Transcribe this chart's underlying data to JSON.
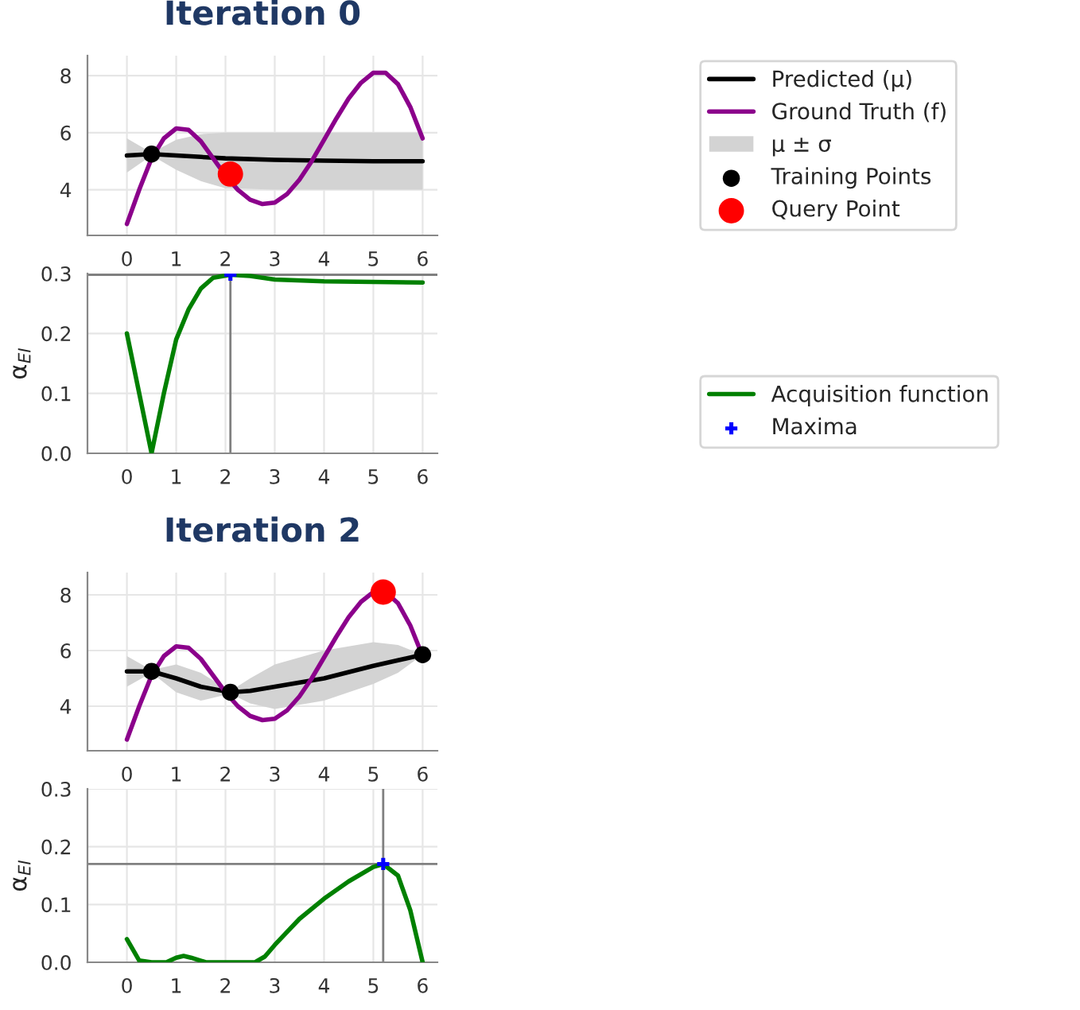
{
  "chart_data": [
    {
      "type": "line",
      "title": "Iteration 0",
      "xlim": [
        -0.8,
        6.3
      ],
      "ylim": [
        2.4,
        8.7
      ],
      "xticks": [
        0,
        1,
        2,
        3,
        4,
        5,
        6
      ],
      "yticks": [
        4,
        6,
        8
      ],
      "grid": true,
      "legend": "right",
      "annotations": [
        "μ ± σ"
      ],
      "series": [
        {
          "name": "Predicted (μ)",
          "type": "line",
          "color": "#000000",
          "x": [
            0,
            0.5,
            1,
            1.5,
            2,
            3,
            4,
            5,
            6
          ],
          "values": [
            5.2,
            5.25,
            5.2,
            5.15,
            5.1,
            5.05,
            5.02,
            5.0,
            5.0
          ],
          "lower": [
            4.6,
            5.2,
            4.7,
            4.3,
            4.05,
            4.0,
            4.0,
            4.0,
            4.0
          ],
          "upper": [
            5.8,
            5.3,
            5.75,
            5.95,
            6.0,
            6.0,
            6.0,
            6.0,
            6.0
          ]
        },
        {
          "name": "Ground Truth (f)",
          "type": "line",
          "color": "#8b008b",
          "x": [
            0,
            0.25,
            0.5,
            0.75,
            1.0,
            1.25,
            1.5,
            1.75,
            2.0,
            2.25,
            2.5,
            2.75,
            3.0,
            3.25,
            3.5,
            3.75,
            4.0,
            4.25,
            4.5,
            4.75,
            5.0,
            5.25,
            5.5,
            5.75,
            6.0
          ],
          "values": [
            2.8,
            4.0,
            5.1,
            5.8,
            6.15,
            6.1,
            5.7,
            5.1,
            4.5,
            4.0,
            3.65,
            3.5,
            3.55,
            3.85,
            4.35,
            5.0,
            5.75,
            6.5,
            7.2,
            7.75,
            8.1,
            8.1,
            7.7,
            6.9,
            5.8
          ]
        },
        {
          "name": "Training Points",
          "type": "scatter",
          "marker": "circle",
          "color": "#000000",
          "x": [
            0.5
          ],
          "values": [
            5.25
          ]
        },
        {
          "name": "Query Point",
          "type": "scatter",
          "marker": "circle",
          "color": "#ff0000",
          "x": [
            2.1
          ],
          "values": [
            4.55
          ]
        }
      ]
    },
    {
      "type": "line",
      "ylabel": "α$_{EI}$",
      "xlim": [
        -0.8,
        6.3
      ],
      "ylim": [
        0,
        0.3
      ],
      "xticks": [
        0,
        1,
        2,
        3,
        4,
        5,
        6
      ],
      "yticks": [
        {
          "value": 0,
          "label": "0.0"
        },
        0.1,
        0.2,
        0.3
      ],
      "grid": true,
      "legend": "bottom right",
      "ref_lines": [
        {
          "axis": "x",
          "value": 2.1,
          "color": "#808080"
        },
        {
          "axis": "y",
          "value": 0.298,
          "color": "#808080"
        }
      ],
      "series": [
        {
          "name": "Acquisition function",
          "type": "line",
          "color": "#008000",
          "x": [
            0,
            0.25,
            0.5,
            0.75,
            1,
            1.25,
            1.5,
            1.75,
            2.1,
            2.5,
            3,
            4,
            5,
            6
          ],
          "values": [
            0.2,
            0.1,
            0.0,
            0.1,
            0.19,
            0.24,
            0.275,
            0.293,
            0.298,
            0.296,
            0.29,
            0.287,
            0.286,
            0.285
          ]
        },
        {
          "name": "Maxima",
          "type": "scatter",
          "marker": "cross",
          "color": "#0000ff",
          "x": [
            2.1
          ],
          "values": [
            0.298
          ]
        }
      ]
    },
    {
      "type": "line",
      "title": "Iteration 2",
      "xlim": [
        -0.8,
        6.3
      ],
      "ylim": [
        2.4,
        8.8
      ],
      "xticks": [
        0,
        1,
        2,
        3,
        4,
        5,
        6
      ],
      "yticks": [
        4,
        6,
        8
      ],
      "grid": true,
      "series": [
        {
          "type": "line",
          "color": "#000000",
          "x": [
            0,
            0.5,
            1,
            1.5,
            2.1,
            2.5,
            3,
            4,
            5,
            5.5,
            6
          ],
          "values": [
            5.25,
            5.25,
            5.0,
            4.7,
            4.5,
            4.55,
            4.7,
            5.0,
            5.45,
            5.65,
            5.85
          ],
          "lower": [
            4.7,
            5.2,
            4.5,
            4.2,
            4.45,
            4.1,
            3.9,
            4.2,
            4.8,
            5.2,
            5.85
          ],
          "upper": [
            5.8,
            5.3,
            5.5,
            5.2,
            4.55,
            5.0,
            5.5,
            6.0,
            6.3,
            6.2,
            5.85
          ]
        },
        {
          "type": "line",
          "color": "#8b008b",
          "x": [
            0,
            0.25,
            0.5,
            0.75,
            1.0,
            1.25,
            1.5,
            1.75,
            2.0,
            2.25,
            2.5,
            2.75,
            3.0,
            3.25,
            3.5,
            3.75,
            4.0,
            4.25,
            4.5,
            4.75,
            5.0,
            5.25,
            5.5,
            5.75,
            6.0
          ],
          "values": [
            2.8,
            4.0,
            5.1,
            5.8,
            6.15,
            6.1,
            5.7,
            5.1,
            4.5,
            4.0,
            3.65,
            3.5,
            3.55,
            3.85,
            4.35,
            5.0,
            5.75,
            6.5,
            7.2,
            7.75,
            8.1,
            8.1,
            7.7,
            6.9,
            5.8
          ]
        },
        {
          "type": "scatter",
          "marker": "circle",
          "color": "#000000",
          "x": [
            0.5,
            2.1,
            6
          ],
          "values": [
            5.25,
            4.5,
            5.85
          ]
        },
        {
          "type": "scatter",
          "marker": "circle",
          "color": "#ff0000",
          "x": [
            5.2
          ],
          "values": [
            8.1
          ]
        }
      ]
    },
    {
      "type": "line",
      "ylabel": "α$_{EI}$",
      "xlim": [
        -0.8,
        6.3
      ],
      "ylim": [
        0,
        0.3
      ],
      "xticks": [
        0,
        1,
        2,
        3,
        4,
        5,
        6
      ],
      "yticks": [
        {
          "value": 0,
          "label": "0.0"
        },
        0.1,
        0.2,
        0.3
      ],
      "grid": true,
      "ref_lines": [
        {
          "axis": "x",
          "value": 5.2,
          "color": "#808080"
        },
        {
          "axis": "y",
          "value": 0.17,
          "color": "#808080"
        }
      ],
      "series": [
        {
          "type": "line",
          "color": "#008000",
          "x": [
            0,
            0.25,
            0.5,
            0.8,
            1.0,
            1.15,
            1.3,
            1.6,
            2,
            2.6,
            2.8,
            3,
            3.5,
            4,
            4.5,
            5,
            5.2,
            5.5,
            5.75,
            6
          ],
          "values": [
            0.04,
            0.003,
            0,
            0,
            0.008,
            0.011,
            0.008,
            0,
            0,
            0,
            0.01,
            0.03,
            0.075,
            0.11,
            0.14,
            0.165,
            0.17,
            0.15,
            0.09,
            0.0
          ]
        },
        {
          "type": "scatter",
          "marker": "cross",
          "color": "#0000ff",
          "x": [
            5.2
          ],
          "values": [
            0.17
          ]
        }
      ]
    }
  ]
}
